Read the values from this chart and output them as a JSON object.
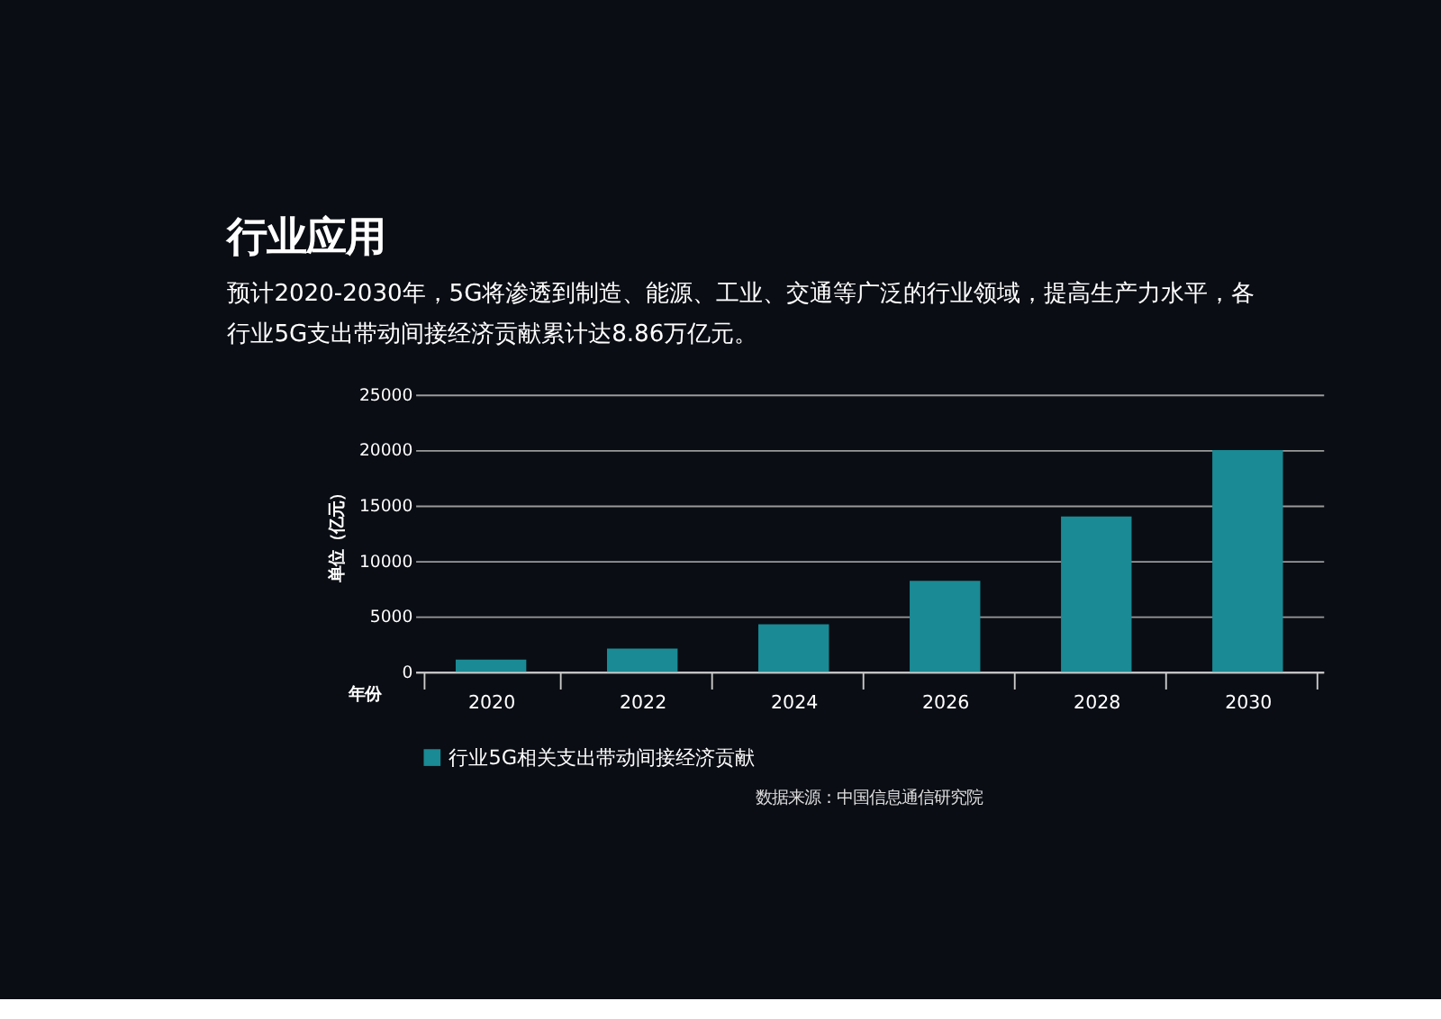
{
  "chart_data": {
    "type": "bar",
    "title": "行业应用",
    "subtitle": "预计2020-2030年，5G将渗透到制造、能源、工业、交通等广泛的行业领域，提高生产力水平，各行业5G支出带动间接经济贡献累计达8.86万亿元。",
    "xlabel": "年份",
    "ylabel": "单位（亿元）",
    "categories": [
      "2020",
      "2022",
      "2024",
      "2026",
      "2028",
      "2030"
    ],
    "series": [
      {
        "name": "行业5G相关支出带动间接经济贡献",
        "color": "#1a8a94",
        "values": [
          1100,
          2100,
          4300,
          8200,
          14000,
          20000
        ]
      }
    ],
    "ylim": [
      0,
      25000
    ],
    "yticks": [
      0,
      5000,
      10000,
      15000,
      20000,
      25000
    ],
    "grid": "y",
    "legend": "bottom",
    "annotations": [
      "数据来源：中国信息通信研究院"
    ]
  }
}
